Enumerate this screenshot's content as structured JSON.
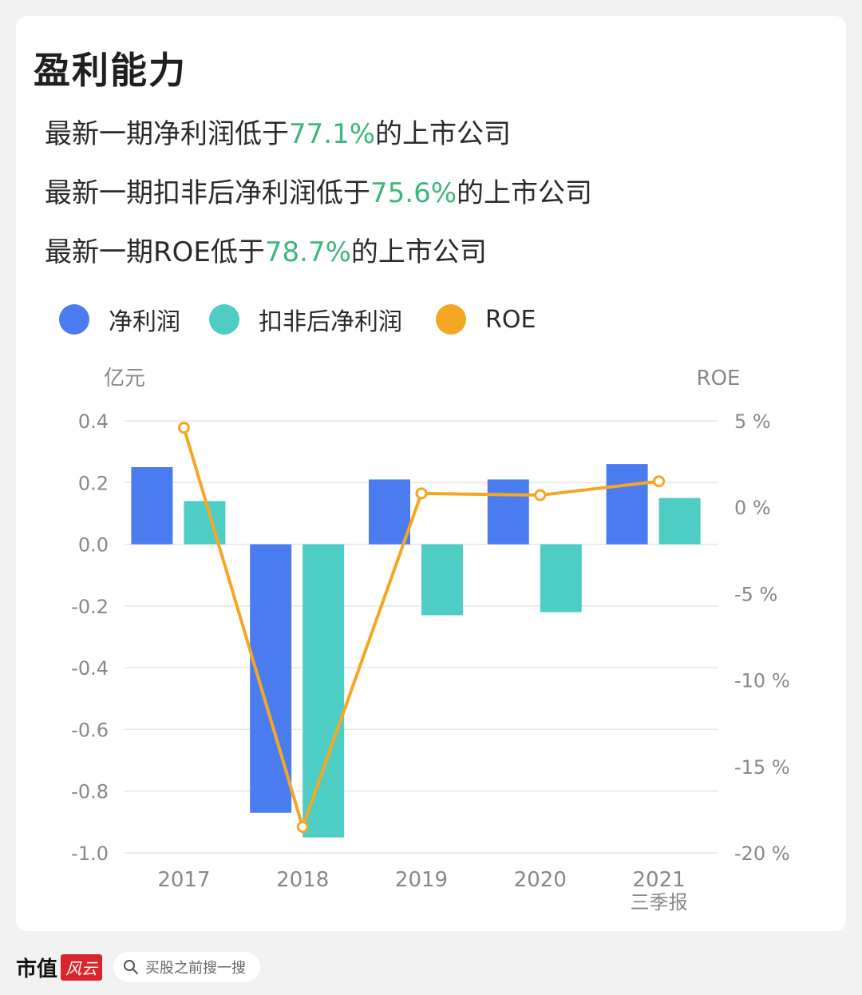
{
  "header": {
    "title": "盈利能力",
    "stats": [
      {
        "prefix": "最新一期净利润低于",
        "value": "77.1%",
        "suffix": "的上市公司"
      },
      {
        "prefix": "最新一期扣非后净利润低于",
        "value": "75.6%",
        "suffix": "的上市公司"
      },
      {
        "prefix": "最新一期ROE低于",
        "value": "78.7%",
        "suffix": "的上市公司"
      }
    ]
  },
  "legend": [
    {
      "label": "净利润",
      "color": "#4a7cf0"
    },
    {
      "label": "扣非后净利润",
      "color": "#4ecdc4"
    },
    {
      "label": "ROE",
      "color": "#f5a623"
    }
  ],
  "colors": {
    "highlight": "#3cb879",
    "grid": "#e6e6e6",
    "axis_text": "#888888"
  },
  "chart_data": {
    "type": "bar",
    "categories": [
      "2017",
      "2018",
      "2019",
      "2020",
      "2021"
    ],
    "category_sublabels": [
      "",
      "",
      "",
      "",
      "三季报"
    ],
    "series": [
      {
        "name": "净利润",
        "axis": "left",
        "values": [
          0.25,
          -0.87,
          0.21,
          0.21,
          0.26
        ]
      },
      {
        "name": "扣非后净利润",
        "axis": "left",
        "values": [
          0.14,
          -0.95,
          -0.23,
          -0.22,
          0.15
        ]
      },
      {
        "name": "ROE",
        "type": "line",
        "axis": "right",
        "values": [
          4.6,
          -18.5,
          0.8,
          0.7,
          1.5
        ]
      }
    ],
    "y_left": {
      "label": "亿元",
      "ylim": [
        -1.0,
        0.4
      ],
      "ticks": [
        "0.4",
        "0.2",
        "0.0",
        "-0.2",
        "-0.4",
        "-0.6",
        "-0.8",
        "-1.0"
      ]
    },
    "y_right": {
      "label": "ROE",
      "ylim": [
        -20,
        5
      ],
      "ticks": [
        "5 %",
        "0 %",
        "-5 %",
        "-10 %",
        "-15 %",
        "-20 %"
      ]
    },
    "grid": true
  },
  "footer": {
    "brand": "市值",
    "brand_badge": "风云",
    "search_label": "买股之前搜一搜"
  }
}
